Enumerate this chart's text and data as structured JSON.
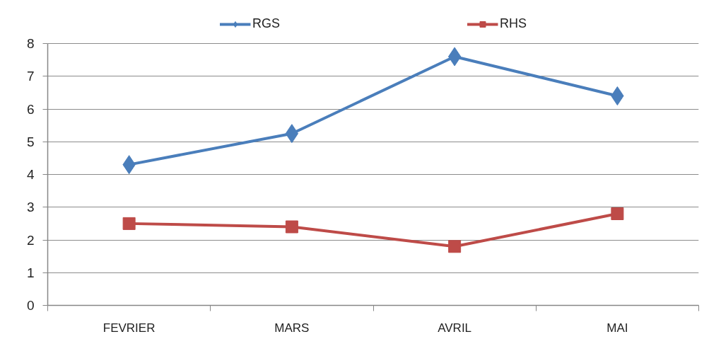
{
  "chart_data": {
    "type": "line",
    "categories": [
      "FEVRIER",
      "MARS",
      "AVRIL",
      "MAI"
    ],
    "series": [
      {
        "name": "RGS",
        "color": "#4a7ebb",
        "marker": "diamond",
        "values": [
          4.3,
          5.25,
          7.6,
          6.4
        ]
      },
      {
        "name": "RHS",
        "color": "#be4b48",
        "marker": "square",
        "values": [
          2.5,
          2.4,
          1.8,
          2.8
        ]
      }
    ],
    "ylim": [
      0,
      8
    ],
    "yticks": [
      0,
      1,
      2,
      3,
      4,
      5,
      6,
      7,
      8
    ],
    "grid": "y",
    "legend": "top",
    "line_style": "solid"
  }
}
